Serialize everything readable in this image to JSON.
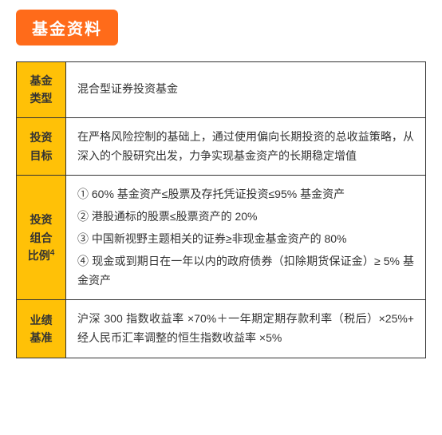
{
  "section_title": "基金资料",
  "section_title_bg": "#ff6b1a",
  "section_title_color": "#ffffff",
  "header_bg": "#ffc107",
  "border_color": "#333333",
  "text_color": "#333333",
  "rows": [
    {
      "label_line1": "基金",
      "label_line2": "类型",
      "content": "混合型证券投资基金"
    },
    {
      "label_line1": "投资",
      "label_line2": "目标",
      "content": "在严格风险控制的基础上，通过使用偏向长期投资的总收益策略，从深入的个股研究出发，力争实现基金资产的长期稳定增值"
    },
    {
      "label_line1": "投资",
      "label_line2": "组合",
      "label_line3": "比例",
      "label_sup": "4",
      "items": [
        "① 60% 基金资产≤股票及存托凭证投资≤95% 基金资产",
        "② 港股通标的股票≤股票资产的 20%",
        "③ 中国新视野主题相关的证券≥非现金基金资产的 80%",
        "④ 现金或到期日在一年以内的政府债券（扣除期货保证金）≥ 5% 基金资产"
      ]
    },
    {
      "label_line1": "业绩",
      "label_line2": "基准",
      "content": "沪深 300 指数收益率 ×70%＋一年期定期存款利率（税后）×25%+ 经人民币汇率调整的恒生指数收益率 ×5%"
    }
  ]
}
